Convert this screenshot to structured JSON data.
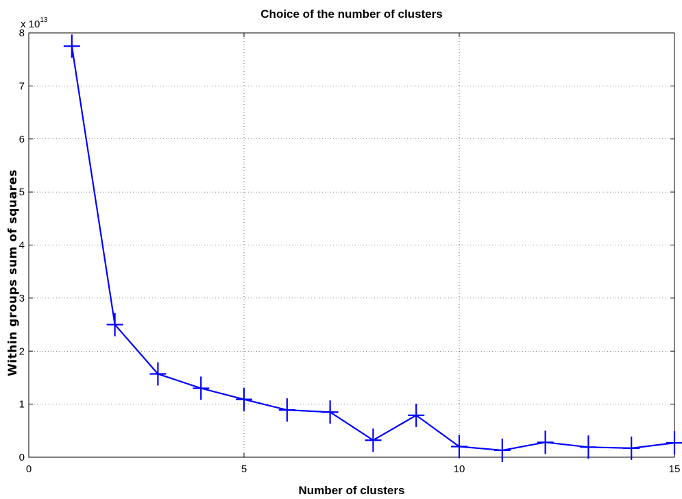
{
  "chart_data": {
    "type": "line",
    "title": "Choice of the number of clusters",
    "xlabel": "Number of clusters",
    "ylabel": "Within groups sum of squares",
    "xlim": [
      0,
      15
    ],
    "ylim": [
      0,
      8
    ],
    "xticks": [
      "0",
      "5",
      "10",
      "15"
    ],
    "xtick_values": [
      0,
      5,
      10,
      15
    ],
    "yticks": [
      "0",
      "1",
      "2",
      "3",
      "4",
      "5",
      "6",
      "7",
      "8"
    ],
    "ytick_values": [
      0,
      1,
      2,
      3,
      4,
      5,
      6,
      7,
      8
    ],
    "y_multiplier": {
      "base": "x 10",
      "exponent": "13"
    },
    "grid": true,
    "marker": "+",
    "series": [
      {
        "color": "#0000ff",
        "x": [
          1,
          2,
          3,
          4,
          5,
          6,
          7,
          8,
          9,
          10,
          11,
          12,
          13,
          14,
          15
        ],
        "y": [
          7.75,
          2.5,
          1.57,
          1.3,
          1.09,
          0.89,
          0.85,
          0.32,
          0.79,
          0.2,
          0.13,
          0.28,
          0.19,
          0.17,
          0.27
        ]
      }
    ]
  }
}
